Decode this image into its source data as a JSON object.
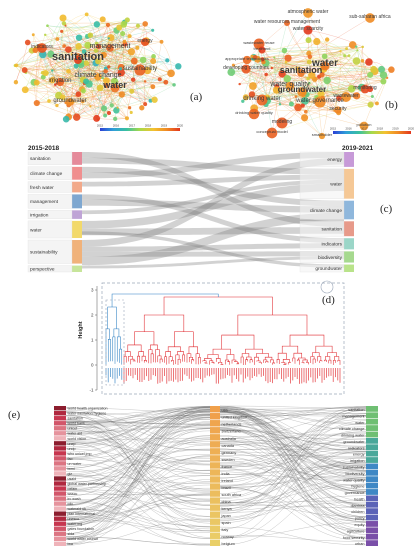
{
  "panel_a": {
    "letter": "(a)",
    "colorbar_ticks": [
      "2015",
      "2016",
      "2017",
      "2018",
      "2019",
      "2020"
    ],
    "colors": {
      "old": "#2b3fd6",
      "mid": "#39c0a0",
      "new": "#f2c230",
      "newest": "#e2361d"
    },
    "terms": [
      {
        "text": "sanitation",
        "size": 11
      },
      {
        "text": "management",
        "size": 7
      },
      {
        "text": "climate change",
        "size": 7
      },
      {
        "text": "irrigation",
        "size": 6
      },
      {
        "text": "water",
        "size": 9
      },
      {
        "text": "sustainability",
        "size": 6
      },
      {
        "text": "groundwater",
        "size": 6
      },
      {
        "text": "energy",
        "size": 5
      },
      {
        "text": "indicators",
        "size": 5
      }
    ]
  },
  "panel_b": {
    "letter": "(b)",
    "colorbar_ticks": [
      "2015",
      "2016",
      "2017",
      "2018",
      "2019",
      "2020"
    ],
    "terms": [
      {
        "text": "atmospheric water",
        "size": 5
      },
      {
        "text": "water resources management",
        "size": 5
      },
      {
        "text": "water scarcity",
        "size": 5
      },
      {
        "text": "sub-saharan africa",
        "size": 5
      },
      {
        "text": "wastewater reuse",
        "size": 4
      },
      {
        "text": "treatment",
        "size": 4
      },
      {
        "text": "appropriate technologies",
        "size": 4
      },
      {
        "text": "developing countries",
        "size": 5
      },
      {
        "text": "water",
        "size": 10
      },
      {
        "text": "sanitation",
        "size": 9
      },
      {
        "text": "water quality",
        "size": 7
      },
      {
        "text": "drinking water",
        "size": 6
      },
      {
        "text": "groundwater",
        "size": 8
      },
      {
        "text": "water governance",
        "size": 6
      },
      {
        "text": "monitoring",
        "size": 5
      },
      {
        "text": "wastewater",
        "size": 5
      },
      {
        "text": "security",
        "size": 5
      },
      {
        "text": "drinking water quality",
        "size": 4
      },
      {
        "text": "modeling",
        "size": 5
      },
      {
        "text": "conceptual model",
        "size": 4
      },
      {
        "text": "smallholder",
        "size": 4
      },
      {
        "text": "pollution",
        "size": 4
      }
    ]
  },
  "panel_c": {
    "letter": "(c)",
    "left_title": "2015-2018",
    "right_title": "2019-2021",
    "left": [
      {
        "label": "sanitation",
        "color": "#e58a9a"
      },
      {
        "label": "climate change",
        "color": "#f08f8f"
      },
      {
        "label": "fresh water",
        "color": "#f2a98a"
      },
      {
        "label": "management",
        "color": "#7ea7d0"
      },
      {
        "label": "irrigation",
        "color": "#bfa4d6"
      },
      {
        "label": "water",
        "color": "#f2d96b"
      },
      {
        "label": "sustainability",
        "color": "#f0b27a"
      },
      {
        "label": "perspective",
        "color": "#c7e59a"
      }
    ],
    "right": [
      {
        "label": "energy",
        "color": "#c79ad8"
      },
      {
        "label": "water",
        "color": "#f5c896"
      },
      {
        "label": "climate change",
        "color": "#8fb7dc"
      },
      {
        "label": "sanitation",
        "color": "#e79a8a"
      },
      {
        "label": "indicators",
        "color": "#9bd6c8"
      },
      {
        "label": "biodiversity",
        "color": "#a6d98f"
      },
      {
        "label": "groundwater",
        "color": "#b9e38a"
      }
    ]
  },
  "panel_d": {
    "letter": "(d)",
    "ylabel": "Height",
    "yticks": [
      "3",
      "2",
      "1",
      "0",
      "-1"
    ],
    "colors": {
      "cluster1": "#2c7fc2",
      "cluster2": "#e0262b"
    }
  },
  "panel_e": {
    "letter": "(e)",
    "left": [
      "world health organization",
      "water sanitation hygiene",
      "sanitation",
      "world bank",
      "unicef",
      "water aid",
      "world vision",
      "unep",
      "undp",
      "who unicef jmp",
      "fao",
      "un water",
      "iwmi",
      "giz",
      "usaid",
      "global water partnership",
      "oxfam",
      "wsscc",
      "irc wash",
      "cdc",
      "wateraid uk",
      "plan international",
      "unesco",
      "water.org",
      "gates foundation",
      "sida",
      "world water council",
      "iwa"
    ],
    "middle": [
      "usa",
      "united kingdom",
      "netherlands",
      "switzerland",
      "australia",
      "canada",
      "germany",
      "sweden",
      "france",
      "india",
      "ireland",
      "brazil",
      "south africa",
      "china",
      "kenya",
      "japan",
      "spain",
      "italy",
      "norway",
      "belgium"
    ],
    "right": [
      "sanitation",
      "management",
      "water",
      "climate change",
      "drinking water",
      "groundwater",
      "indicators",
      "energy",
      "irrigation",
      "sustainability",
      "biodiversity",
      "water quality",
      "hygiene",
      "governance",
      "health",
      "diarrhea",
      "children",
      "policy",
      "equity",
      "agriculture",
      "food security",
      "urban"
    ],
    "left_colors": [
      "#8c1d2e",
      "#b0283f",
      "#c7364f",
      "#d2566a",
      "#dc7482",
      "#e6939d",
      "#efb3b9"
    ],
    "middle_color": "#f0a04b",
    "right_colors": [
      "#6fbf73",
      "#4aa89a",
      "#3f88c5",
      "#5b63b7",
      "#7a4fa8"
    ]
  }
}
